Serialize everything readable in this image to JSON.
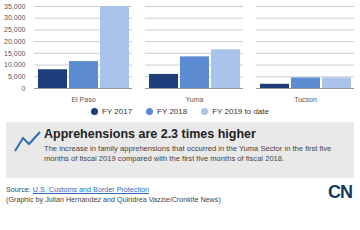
{
  "chart_data": {
    "type": "bar",
    "categories": [
      "El Paso",
      "Yuma",
      "Tucson"
    ],
    "series": [
      {
        "name": "FY 2017",
        "color": "#1f3d7a",
        "values": [
          8000,
          6000,
          1800
        ]
      },
      {
        "name": "FY 2018",
        "color": "#5b8bd0",
        "values": [
          11500,
          13500,
          4500
        ]
      },
      {
        "name": "FY 2019 to date",
        "color": "#a9c3ea",
        "values": [
          35000,
          16500,
          4500
        ]
      }
    ],
    "ylim": [
      0,
      35000
    ],
    "yticks": [
      0,
      {
        "value": 5000,
        "label": "5,000"
      },
      {
        "value": 10000,
        "label": "10,000"
      },
      {
        "value": 15000,
        "label": "15,000"
      },
      {
        "value": 20000,
        "label": "20,000"
      },
      {
        "value": 25000,
        "label": "25,000"
      },
      {
        "value": 30000,
        "label": "30,000"
      },
      {
        "value": 35000,
        "label": "35,000"
      }
    ],
    "grid": true,
    "legend": "bottom",
    "annotation_title": "Apprehensions are 2.3 times higher",
    "annotation_text": "The increase in family apprehensions that occurred in the Yuma Sector in the first five months of fiscal 2019 compared with the first five months of fiscal 2018.",
    "source_label": "Source:",
    "source": "U.S. Customs and Border Protection",
    "credit": "(Graphic by Julian Hernandez and Quindrea Vazzie/Cronkite News)",
    "logo": "CN"
  }
}
